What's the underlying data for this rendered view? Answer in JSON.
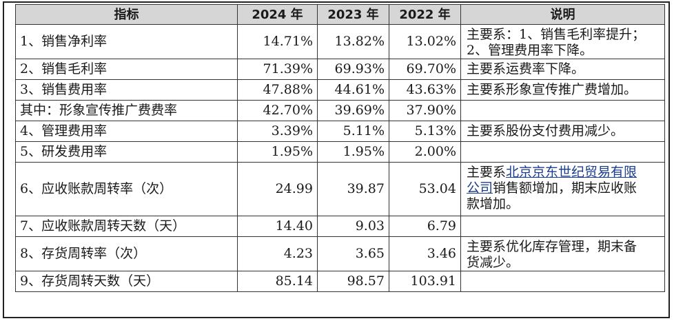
{
  "table": {
    "headers": [
      "指标",
      "2024 年",
      "2023 年",
      "2022 年",
      "说明"
    ],
    "rows": [
      {
        "indicator": "1、销售净利率",
        "y2024": "14.71%",
        "y2023": "13.82%",
        "y2022": "13.02%",
        "note_lines": [
          "主要系：1、销售毛利率提升；",
          "2、管理费用率下降。"
        ]
      },
      {
        "indicator": "2、销售毛利率",
        "y2024": "71.39%",
        "y2023": "69.93%",
        "y2022": "69.70%",
        "note_lines": [
          "主要系运费率下降。"
        ]
      },
      {
        "indicator": "3、销售费用率",
        "y2024": "47.88%",
        "y2023": "44.61%",
        "y2022": "43.63%",
        "note_lines": [
          "主要系形象宣传推广费增加。"
        ]
      },
      {
        "indicator": "其中：形象宣传推广费费率",
        "y2024": "42.70%",
        "y2023": "39.69%",
        "y2022": "37.90%",
        "note_lines": []
      },
      {
        "indicator": "4、管理费用率",
        "y2024": "3.39%",
        "y2023": "5.11%",
        "y2022": "5.13%",
        "note_lines": [
          "主要系股份支付费用减少。"
        ]
      },
      {
        "indicator": "5、研发费用率",
        "y2024": "1.95%",
        "y2023": "1.95%",
        "y2022": "2.00%",
        "note_lines": []
      },
      {
        "indicator": "6、应收账款周转率（次）",
        "y2024": "24.99",
        "y2023": "39.87",
        "y2022": "53.04",
        "note_parts": {
          "prefix": "主要系",
          "link": "北京京东世纪贸易有限",
          "line2_link": "公司",
          "line2_rest": "销售额增加，期末应收账",
          "line3": "款增加。"
        }
      },
      {
        "indicator": "7、应收账款周转天数（天）",
        "y2024": "14.40",
        "y2023": "9.03",
        "y2022": "6.79",
        "note_lines": []
      },
      {
        "indicator": "8、存货周转率（次）",
        "y2024": "4.23",
        "y2023": "3.65",
        "y2022": "3.46",
        "note_lines": [
          "主要系优化库存管理，期末备",
          "货减少。"
        ]
      },
      {
        "indicator": "9、存货周转天数（天）",
        "y2024": "85.14",
        "y2023": "98.57",
        "y2022": "103.91",
        "note_lines": []
      }
    ]
  }
}
